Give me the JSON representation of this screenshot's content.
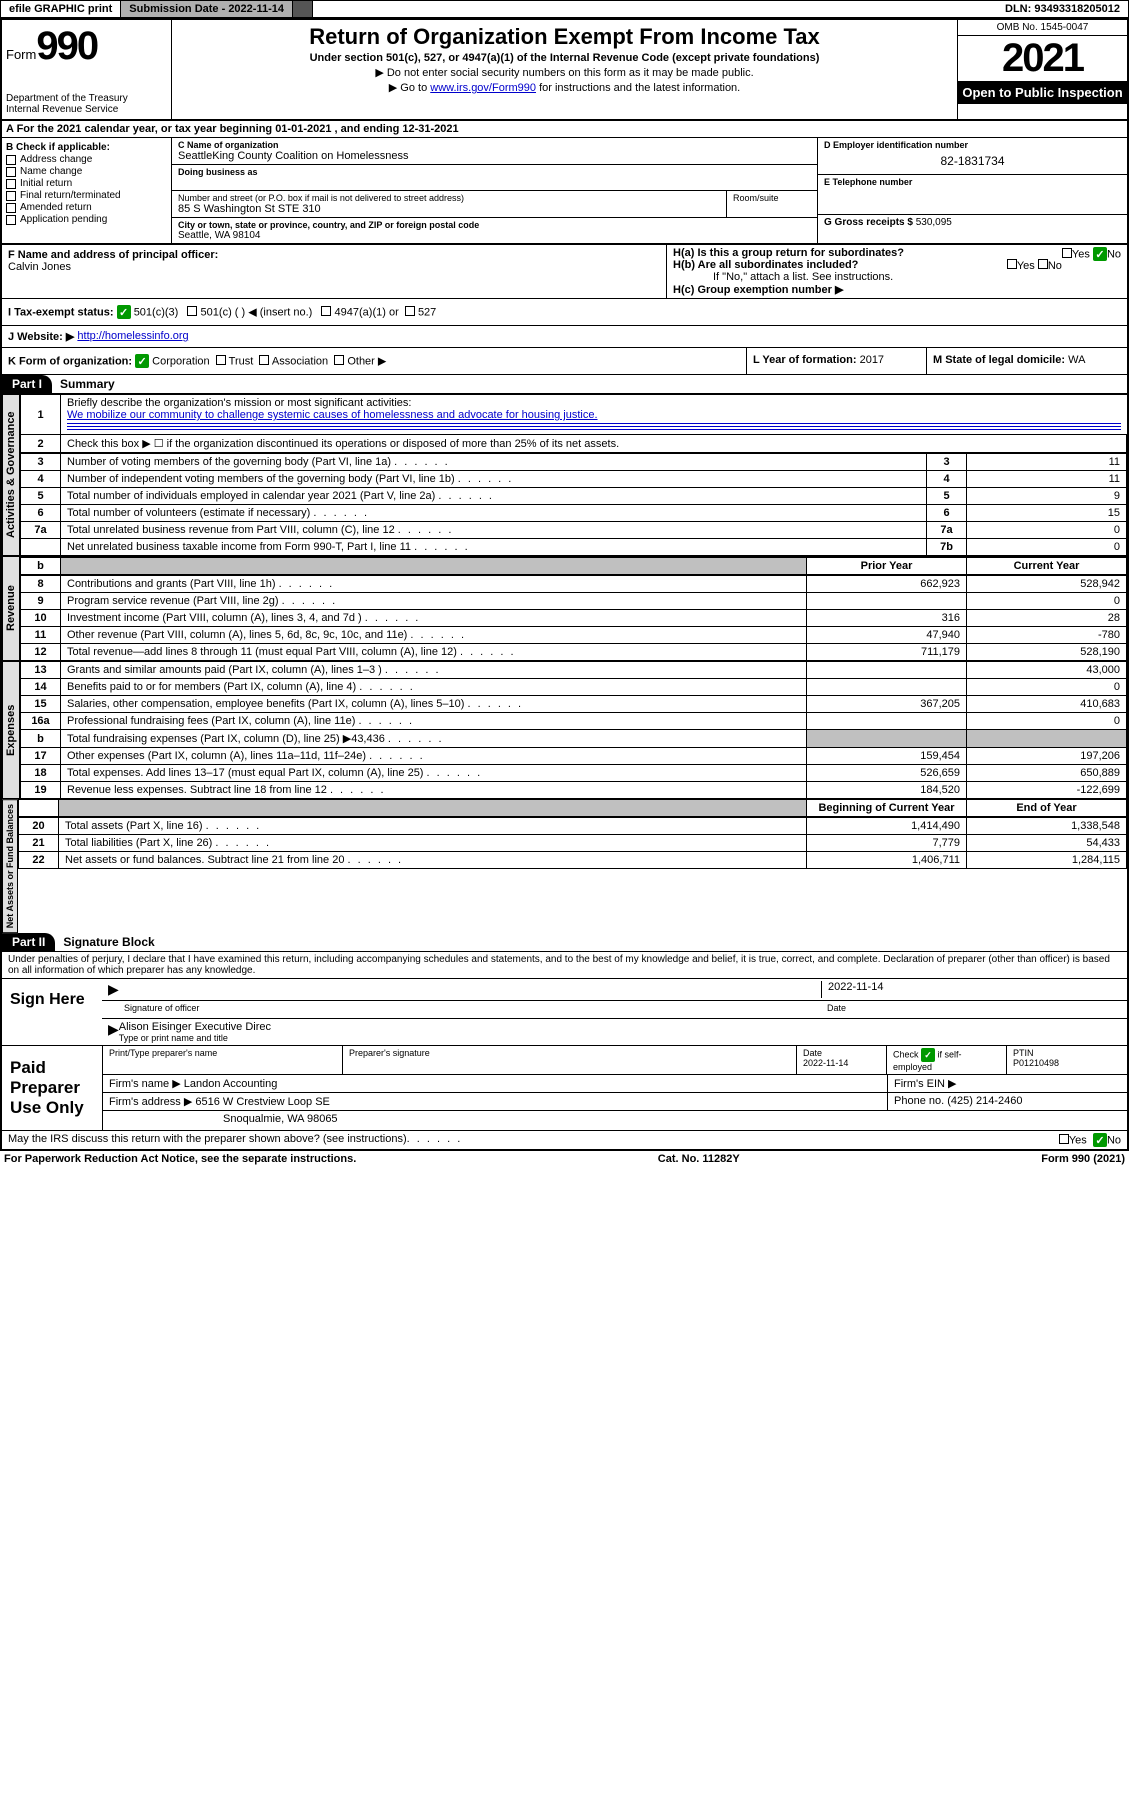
{
  "topbar": {
    "efile": "efile GRAPHIC print",
    "sub_label": "Submission Date - 2022-11-14",
    "dln": "DLN: 93493318205012"
  },
  "header": {
    "form_word": "Form",
    "form_num": "990",
    "title": "Return of Organization Exempt From Income Tax",
    "subtitle": "Under section 501(c), 527, or 4947(a)(1) of the Internal Revenue Code (except private foundations)",
    "note1": "▶ Do not enter social security numbers on this form as it may be made public.",
    "note2_pre": "▶ Go to ",
    "note2_link": "www.irs.gov/Form990",
    "note2_post": " for instructions and the latest information.",
    "dept": "Department of the Treasury\nInternal Revenue Service",
    "omb": "OMB No. 1545-0047",
    "year": "2021",
    "open": "Open to Public Inspection"
  },
  "row_a": "A For the 2021 calendar year, or tax year beginning 01-01-2021    , and ending 12-31-2021",
  "col_b": {
    "title": "B Check if applicable:",
    "items": [
      "Address change",
      "Name change",
      "Initial return",
      "Final return/terminated",
      "Amended return",
      "Application pending"
    ]
  },
  "c": {
    "name_lbl": "C Name of organization",
    "name": "SeattleKing County Coalition on Homelessness",
    "dba_lbl": "Doing business as",
    "addr_lbl": "Number and street (or P.O. box if mail is not delivered to street address)",
    "room_lbl": "Room/suite",
    "addr": "85 S Washington St STE 310",
    "city_lbl": "City or town, state or province, country, and ZIP or foreign postal code",
    "city": "Seattle, WA  98104"
  },
  "d": {
    "ein_lbl": "D Employer identification number",
    "ein": "82-1831734",
    "phone_lbl": "E Telephone number",
    "gross_lbl": "G Gross receipts $",
    "gross": "530,095"
  },
  "f": {
    "lbl": "F Name and address of principal officer:",
    "val": "Calvin Jones"
  },
  "h": {
    "a": "H(a)  Is this a group return for subordinates?",
    "b": "H(b)  Are all subordinates included?",
    "b_note": "If \"No,\" attach a list. See instructions.",
    "c": "H(c)  Group exemption number ▶",
    "yes": "Yes",
    "no": "No"
  },
  "i": {
    "lbl": "I    Tax-exempt status:",
    "o1": "501(c)(3)",
    "o2": "501(c) (   ) ◀ (insert no.)",
    "o3": "4947(a)(1) or",
    "o4": "527"
  },
  "j": {
    "lbl": "J    Website: ▶",
    "val": "http://homelessinfo.org"
  },
  "k": {
    "lbl": "K Form of organization:",
    "o1": "Corporation",
    "o2": "Trust",
    "o3": "Association",
    "o4": "Other ▶"
  },
  "l": {
    "lbl": "L Year of formation:",
    "val": "2017"
  },
  "m": {
    "lbl": "M State of legal domicile:",
    "val": "WA"
  },
  "part1": {
    "num": "Part I",
    "title": "Summary"
  },
  "summary": {
    "q1": "Briefly describe the organization's mission or most significant activities:",
    "a1": "We mobilize our community to challenge systemic causes of homelessness and advocate for housing justice.",
    "q2": "Check this box ▶ ☐  if the organization discontinued its operations or disposed of more than 25% of its net assets.",
    "rows_gov": [
      {
        "n": "3",
        "d": "Number of voting members of the governing body (Part VI, line 1a)",
        "box": "3",
        "v": "11"
      },
      {
        "n": "4",
        "d": "Number of independent voting members of the governing body (Part VI, line 1b)",
        "box": "4",
        "v": "11"
      },
      {
        "n": "5",
        "d": "Total number of individuals employed in calendar year 2021 (Part V, line 2a)",
        "box": "5",
        "v": "9"
      },
      {
        "n": "6",
        "d": "Total number of volunteers (estimate if necessary)",
        "box": "6",
        "v": "15"
      },
      {
        "n": "7a",
        "d": "Total unrelated business revenue from Part VIII, column (C), line 12",
        "box": "7a",
        "v": "0"
      },
      {
        "n": "",
        "d": "Net unrelated business taxable income from Form 990-T, Part I, line 11",
        "box": "7b",
        "v": "0"
      }
    ],
    "hdr_prior": "Prior Year",
    "hdr_curr": "Current Year",
    "rows_rev": [
      {
        "n": "8",
        "d": "Contributions and grants (Part VIII, line 1h)",
        "p": "662,923",
        "c": "528,942"
      },
      {
        "n": "9",
        "d": "Program service revenue (Part VIII, line 2g)",
        "p": "",
        "c": "0"
      },
      {
        "n": "10",
        "d": "Investment income (Part VIII, column (A), lines 3, 4, and 7d )",
        "p": "316",
        "c": "28"
      },
      {
        "n": "11",
        "d": "Other revenue (Part VIII, column (A), lines 5, 6d, 8c, 9c, 10c, and 11e)",
        "p": "47,940",
        "c": "-780"
      },
      {
        "n": "12",
        "d": "Total revenue—add lines 8 through 11 (must equal Part VIII, column (A), line 12)",
        "p": "711,179",
        "c": "528,190"
      }
    ],
    "rows_exp": [
      {
        "n": "13",
        "d": "Grants and similar amounts paid (Part IX, column (A), lines 1–3 )",
        "p": "",
        "c": "43,000"
      },
      {
        "n": "14",
        "d": "Benefits paid to or for members (Part IX, column (A), line 4)",
        "p": "",
        "c": "0"
      },
      {
        "n": "15",
        "d": "Salaries, other compensation, employee benefits (Part IX, column (A), lines 5–10)",
        "p": "367,205",
        "c": "410,683"
      },
      {
        "n": "16a",
        "d": "Professional fundraising fees (Part IX, column (A), line 11e)",
        "p": "",
        "c": "0"
      },
      {
        "n": "b",
        "d": "Total fundraising expenses (Part IX, column (D), line 25) ▶43,436",
        "p": "shade",
        "c": "shade"
      },
      {
        "n": "17",
        "d": "Other expenses (Part IX, column (A), lines 11a–11d, 11f–24e)",
        "p": "159,454",
        "c": "197,206"
      },
      {
        "n": "18",
        "d": "Total expenses. Add lines 13–17 (must equal Part IX, column (A), line 25)",
        "p": "526,659",
        "c": "650,889"
      },
      {
        "n": "19",
        "d": "Revenue less expenses. Subtract line 18 from line 12",
        "p": "184,520",
        "c": "-122,699"
      }
    ],
    "hdr_beg": "Beginning of Current Year",
    "hdr_end": "End of Year",
    "rows_net": [
      {
        "n": "20",
        "d": "Total assets (Part X, line 16)",
        "p": "1,414,490",
        "c": "1,338,548"
      },
      {
        "n": "21",
        "d": "Total liabilities (Part X, line 26)",
        "p": "7,779",
        "c": "54,433"
      },
      {
        "n": "22",
        "d": "Net assets or fund balances. Subtract line 21 from line 20",
        "p": "1,406,711",
        "c": "1,284,115"
      }
    ],
    "tab_gov": "Activities & Governance",
    "tab_rev": "Revenue",
    "tab_exp": "Expenses",
    "tab_net": "Net Assets or Fund Balances"
  },
  "part2": {
    "num": "Part II",
    "title": "Signature Block"
  },
  "penalty": "Under penalties of perjury, I declare that I have examined this return, including accompanying schedules and statements, and to the best of my knowledge and belief, it is true, correct, and complete. Declaration of preparer (other than officer) is based on all information of which preparer has any knowledge.",
  "sign": {
    "here": "Sign Here",
    "sig_lbl": "Signature of officer",
    "date": "2022-11-14",
    "date_lbl": "Date",
    "name": "Alison Eisinger  Executive Direc",
    "name_lbl": "Type or print name and title"
  },
  "paid": {
    "title": "Paid Preparer Use Only",
    "c1": "Print/Type preparer's name",
    "c2": "Preparer's signature",
    "c3": "Date",
    "c3v": "2022-11-14",
    "c4": "Check ☑ if self-employed",
    "c5": "PTIN",
    "c5v": "P01210498",
    "firm_lbl": "Firm's name    ▶",
    "firm": "Landon Accounting",
    "ein_lbl": "Firm's EIN ▶",
    "addr_lbl": "Firm's address ▶",
    "addr1": "6516 W Crestview Loop SE",
    "addr2": "Snoqualmie, WA  98065",
    "phone_lbl": "Phone no.",
    "phone": "(425) 214-2460"
  },
  "discuss": "May the IRS discuss this return with the preparer shown above? (see instructions)",
  "footer": {
    "left": "For Paperwork Reduction Act Notice, see the separate instructions.",
    "mid": "Cat. No. 11282Y",
    "right": "Form 990 (2021)"
  },
  "yn": {
    "yes": "Yes",
    "no": "No"
  }
}
